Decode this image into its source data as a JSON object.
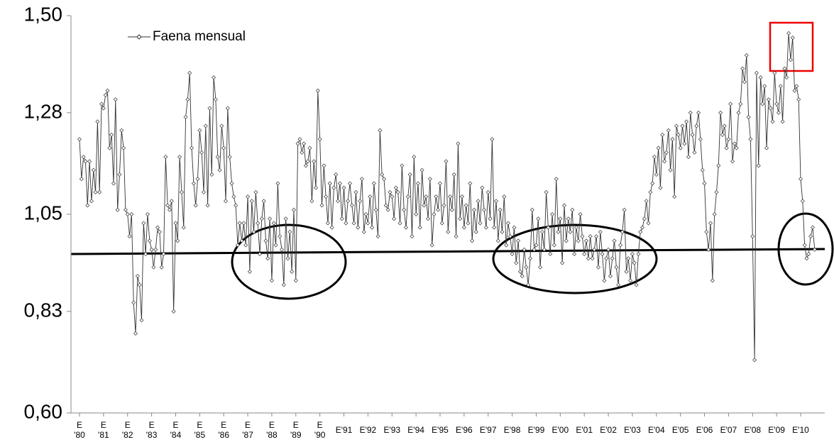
{
  "chart_data": {
    "type": "line",
    "legend": "top-left",
    "series": [
      {
        "name": "Faena mensual",
        "color": "#333333",
        "values": [
          1.22,
          1.13,
          1.18,
          1.17,
          1.07,
          1.17,
          1.08,
          1.15,
          1.1,
          1.26,
          1.1,
          1.3,
          1.29,
          1.32,
          1.33,
          1.2,
          1.23,
          1.12,
          1.31,
          1.06,
          1.14,
          1.24,
          1.2,
          1.06,
          1.05,
          1.0,
          1.05,
          0.85,
          0.78,
          0.91,
          0.89,
          0.81,
          1.03,
          0.96,
          1.05,
          0.99,
          0.97,
          0.93,
          0.97,
          1.02,
          1.01,
          0.93,
          0.96,
          1.18,
          1.07,
          1.06,
          1.08,
          0.83,
          1.03,
          0.99,
          1.18,
          1.1,
          1.02,
          1.27,
          1.31,
          1.37,
          1.2,
          1.12,
          1.07,
          1.13,
          1.24,
          1.19,
          1.1,
          1.25,
          1.07,
          1.29,
          1.14,
          1.36,
          1.31,
          1.18,
          1.15,
          1.25,
          1.2,
          1.08,
          1.29,
          1.18,
          1.12,
          1.09,
          1.07,
          0.98,
          1.03,
          0.99,
          1.03,
          0.98,
          1.09,
          0.92,
          1.08,
          1.01,
          1.1,
          1.03,
          0.96,
          1.04,
          1.08,
          0.99,
          0.95,
          1.04,
          0.9,
          1.03,
          0.98,
          1.12,
          1.0,
          0.97,
          0.89,
          1.04,
          0.95,
          1.01,
          0.92,
          1.06,
          0.9,
          1.21,
          1.22,
          1.19,
          1.21,
          1.16,
          1.17,
          1.2,
          1.08,
          1.17,
          1.11,
          1.33,
          1.22,
          1.07,
          1.16,
          1.09,
          1.03,
          1.12,
          1.02,
          1.11,
          1.14,
          1.08,
          1.12,
          1.04,
          1.11,
          1.03,
          1.08,
          1.12,
          1.07,
          1.03,
          1.1,
          1.02,
          1.08,
          1.13,
          1.01,
          1.05,
          1.03,
          1.09,
          1.02,
          1.12,
          1.06,
          1.0,
          1.24,
          1.14,
          1.13,
          1.07,
          1.06,
          1.1,
          1.09,
          1.04,
          1.11,
          1.1,
          1.03,
          1.16,
          1.06,
          1.02,
          1.09,
          1.14,
          1.0,
          1.18,
          1.05,
          1.12,
          1.02,
          1.15,
          1.07,
          1.09,
          1.04,
          1.13,
          0.98,
          1.05,
          1.09,
          1.06,
          1.12,
          1.03,
          1.07,
          1.17,
          1.01,
          1.09,
          1.06,
          1.14,
          1.0,
          1.21,
          1.04,
          1.09,
          1.02,
          1.07,
          1.03,
          1.12,
          0.99,
          1.06,
          1.01,
          1.08,
          1.03,
          1.11,
          1.06,
          1.02,
          1.1,
          1.04,
          1.22,
          1.02,
          1.08,
          0.99,
          1.06,
          1.01,
          1.09,
          0.98,
          1.03,
          1.0,
          0.96,
          1.02,
          0.94,
          0.99,
          0.92,
          0.91,
          0.97,
          0.93,
          0.89,
          0.95,
          1.06,
          0.97,
          0.98,
          1.04,
          0.93,
          1.01,
          0.97,
          1.1,
          1.02,
          0.96,
          1.05,
          0.98,
          1.13,
          1.01,
          1.04,
          0.94,
          1.07,
          0.99,
          1.04,
          1.01,
          1.06,
          0.96,
          1.02,
          0.99,
          1.05,
          1.0,
          0.96,
          0.99,
          0.95,
          1.0,
          0.95,
          0.97,
          1.0,
          0.93,
          1.01,
          0.96,
          0.9,
          0.95,
          0.97,
          0.91,
          0.95,
          0.99,
          0.93,
          0.89,
          0.98,
          1.01,
          1.06,
          0.92,
          0.95,
          0.9,
          0.96,
          0.94,
          0.89,
          0.96,
          1.01,
          1.02,
          1.04,
          1.08,
          1.03,
          1.1,
          1.12,
          1.18,
          1.14,
          1.2,
          1.11,
          1.23,
          1.17,
          1.19,
          1.24,
          1.15,
          1.22,
          1.09,
          1.25,
          1.23,
          1.2,
          1.25,
          1.21,
          1.26,
          1.18,
          1.28,
          1.23,
          1.19,
          1.25,
          1.28,
          1.22,
          1.15,
          1.12,
          1.01,
          0.97,
          1.03,
          0.9,
          1.05,
          1.1,
          1.16,
          1.28,
          1.23,
          1.25,
          1.2,
          1.22,
          1.3,
          1.17,
          1.21,
          1.2,
          1.28,
          1.3,
          1.38,
          1.35,
          1.41,
          1.27,
          1.22,
          1.0,
          0.72,
          1.37,
          1.16,
          1.36,
          1.3,
          1.34,
          1.2,
          1.31,
          1.29,
          1.26,
          1.37,
          1.3,
          1.28,
          1.34,
          1.26,
          1.38,
          1.36,
          1.46,
          1.4,
          1.45,
          1.33,
          1.34,
          1.31,
          1.13,
          1.08,
          0.98,
          0.95,
          0.96,
          1.0,
          1.02,
          0.97
        ]
      }
    ],
    "categories": [
      "E '80",
      null,
      null,
      null,
      null,
      null,
      null,
      null,
      null,
      null,
      null,
      null,
      "E '81",
      null,
      null,
      null,
      null,
      null,
      null,
      null,
      null,
      null,
      null,
      null,
      "E '82",
      null,
      null,
      null,
      null,
      null,
      null,
      null,
      null,
      null,
      null,
      null,
      "E '83",
      null,
      null,
      null,
      null,
      null,
      null,
      null,
      null,
      null,
      null,
      null,
      "E '84",
      null,
      null,
      null,
      null,
      null,
      null,
      null,
      null,
      null,
      null,
      null,
      "E '85",
      null,
      null,
      null,
      null,
      null,
      null,
      null,
      null,
      null,
      null,
      null,
      "E '86",
      null,
      null,
      null,
      null,
      null,
      null,
      null,
      null,
      null,
      null,
      null,
      "E '87",
      null,
      null,
      null,
      null,
      null,
      null,
      null,
      null,
      null,
      null,
      null,
      "E '88",
      null,
      null,
      null,
      null,
      null,
      null,
      null,
      null,
      null,
      null,
      null,
      "E '89",
      null,
      null,
      null,
      null,
      null,
      null,
      null,
      null,
      null,
      null,
      null,
      "E '90",
      null,
      null,
      null,
      null,
      null,
      null,
      null,
      null,
      null,
      null,
      null,
      "E'91",
      null,
      null,
      null,
      null,
      null,
      null,
      null,
      null,
      null,
      null,
      null,
      "E'92",
      null,
      null,
      null,
      null,
      null,
      null,
      null,
      null,
      null,
      null,
      null,
      "E'93",
      null,
      null,
      null,
      null,
      null,
      null,
      null,
      null,
      null,
      null,
      null,
      "E'94",
      null,
      null,
      null,
      null,
      null,
      null,
      null,
      null,
      null,
      null,
      null,
      "E'95",
      null,
      null,
      null,
      null,
      null,
      null,
      null,
      null,
      null,
      null,
      null,
      "E'96",
      null,
      null,
      null,
      null,
      null,
      null,
      null,
      null,
      null,
      null,
      null,
      "E'97",
      null,
      null,
      null,
      null,
      null,
      null,
      null,
      null,
      null,
      null,
      null,
      "E'98",
      null,
      null,
      null,
      null,
      null,
      null,
      null,
      null,
      null,
      null,
      null,
      "E'99",
      null,
      null,
      null,
      null,
      null,
      null,
      null,
      null,
      null,
      null,
      null,
      "E'00",
      null,
      null,
      null,
      null,
      null,
      null,
      null,
      null,
      null,
      null,
      null,
      "E'01",
      null,
      null,
      null,
      null,
      null,
      null,
      null,
      null,
      null,
      null,
      null,
      "E'02",
      null,
      null,
      null,
      null,
      null,
      null,
      null,
      null,
      null,
      null,
      null,
      "E'03",
      null,
      null,
      null,
      null,
      null,
      null,
      null,
      null,
      null,
      null,
      null,
      "E'04",
      null,
      null,
      null,
      null,
      null,
      null,
      null,
      null,
      null,
      null,
      null,
      "E'05",
      null,
      null,
      null,
      null,
      null,
      null,
      null,
      null,
      null,
      null,
      null,
      "E'06",
      null,
      null,
      null,
      null,
      null,
      null,
      null,
      null,
      null,
      null,
      null,
      "E'07",
      null,
      null,
      null,
      null,
      null,
      null,
      null,
      null,
      null,
      null,
      null,
      "E'08",
      null,
      null,
      null,
      null,
      null,
      null,
      null,
      null,
      null,
      null,
      null,
      "E'09",
      null,
      null,
      null,
      null,
      null,
      null,
      null,
      null,
      null,
      null,
      null,
      "E'10",
      null,
      null,
      null,
      null,
      null,
      null,
      null
    ],
    "ylim": [
      0.6,
      1.5
    ],
    "yticks": [
      {
        "value": 0.6,
        "label": "0,60"
      },
      {
        "value": 0.83,
        "label": "0,83"
      },
      {
        "value": 1.05,
        "label": "1,05"
      },
      {
        "value": 1.28,
        "label": "1,28"
      },
      {
        "value": 1.5,
        "label": "1,50"
      }
    ],
    "grid": false
  }
}
